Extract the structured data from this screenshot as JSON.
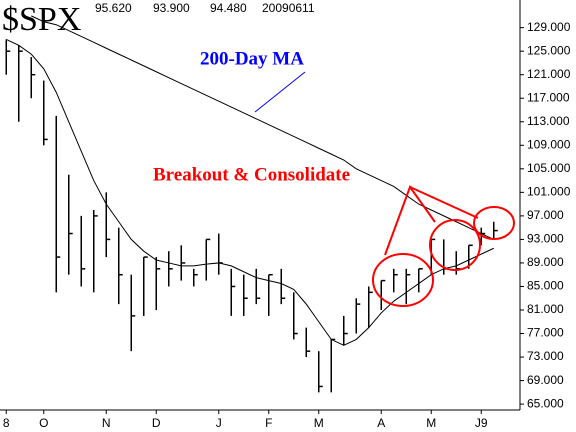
{
  "chart_data": {
    "type": "ohlc",
    "title": "$SPX",
    "header_values": [
      "95.620",
      "93.900",
      "94.480",
      "20090611"
    ],
    "categories": [
      "8",
      null,
      null,
      "O",
      null,
      null,
      null,
      null,
      "N",
      null,
      null,
      null,
      "D",
      null,
      null,
      null,
      null,
      "J",
      null,
      null,
      null,
      "F",
      null,
      null,
      null,
      "M",
      null,
      null,
      null,
      null,
      "A",
      null,
      null,
      null,
      "M",
      null,
      null,
      null,
      "J9",
      null
    ],
    "high": [
      127,
      126,
      124,
      120,
      114,
      104,
      97,
      98,
      101,
      95,
      87,
      90,
      90,
      91,
      92,
      88,
      93,
      94,
      88,
      87,
      88,
      87,
      88,
      84,
      78,
      74,
      76,
      80,
      83,
      85,
      86,
      88,
      88,
      88,
      93,
      93,
      91,
      92,
      95,
      96
    ],
    "low": [
      121,
      113,
      117,
      109,
      84,
      87,
      85,
      84,
      90,
      82,
      74,
      80,
      81,
      85,
      86,
      85,
      86,
      87,
      80,
      80,
      82,
      80,
      82,
      76,
      73,
      67,
      67,
      75,
      77,
      78,
      81,
      84,
      82,
      84,
      87,
      87,
      87,
      88,
      92,
      93
    ],
    "close": [
      125,
      125,
      121,
      110,
      90,
      94,
      88,
      97,
      93,
      87,
      80,
      90,
      88,
      88,
      89,
      87,
      93,
      89,
      85,
      83,
      83,
      87,
      83,
      77,
      74,
      68,
      76,
      77,
      82,
      84,
      86,
      87,
      87,
      88,
      93,
      88,
      88,
      92,
      94,
      94.5
    ],
    "bar_color": "#000000",
    "ma_200": [
      null,
      null,
      131,
      130,
      129.5,
      128.5,
      127.5,
      126.5,
      125.5,
      124.5,
      123.5,
      122.5,
      121.5,
      120.5,
      119.5,
      118.5,
      117.5,
      116.5,
      115.5,
      114.5,
      113.5,
      112.5,
      111.5,
      110.5,
      109.5,
      108.5,
      107.5,
      106.5,
      105,
      104,
      103,
      102,
      100.5,
      99,
      98,
      97,
      96,
      95,
      94,
      93
    ],
    "ma_200_label": "200-Day MA",
    "ma_200_color": "#0000ff",
    "ma_short": [
      127,
      126,
      124.5,
      122,
      118,
      113,
      108,
      103,
      99,
      96,
      93,
      91,
      89.5,
      89,
      88.5,
      88.5,
      88.8,
      89,
      88.5,
      87.5,
      86.5,
      86,
      85.5,
      84.5,
      82,
      79,
      76,
      75,
      76,
      78,
      80.5,
      82.5,
      84,
      85.5,
      87,
      88,
      88.5,
      89.5,
      90.5,
      91.5
    ],
    "ma_color": "#000000",
    "annotation": "Breakout & Consolidate",
    "annotation_color": "#ff0000",
    "ylim": [
      64,
      132
    ],
    "yticks": [
      {
        "value": 65,
        "label": "65.000"
      },
      {
        "value": 69,
        "label": "69.000"
      },
      {
        "value": 73,
        "label": "73.000"
      },
      {
        "value": 77,
        "label": "77.000"
      },
      {
        "value": 81,
        "label": "81.000"
      },
      {
        "value": 85,
        "label": "85.000"
      },
      {
        "value": 89,
        "label": "89.000"
      },
      {
        "value": 93,
        "label": "93.000"
      },
      {
        "value": 97,
        "label": "97.000"
      },
      {
        "value": 101,
        "label": "101.000"
      },
      {
        "value": 105,
        "label": "105.000"
      },
      {
        "value": 109,
        "label": "109.000"
      },
      {
        "value": 113,
        "label": "113.000"
      },
      {
        "value": 117,
        "label": "117.000"
      },
      {
        "value": 121,
        "label": "121.000"
      },
      {
        "value": 125,
        "label": "125.000"
      },
      {
        "value": 129,
        "label": "129.000"
      }
    ]
  }
}
